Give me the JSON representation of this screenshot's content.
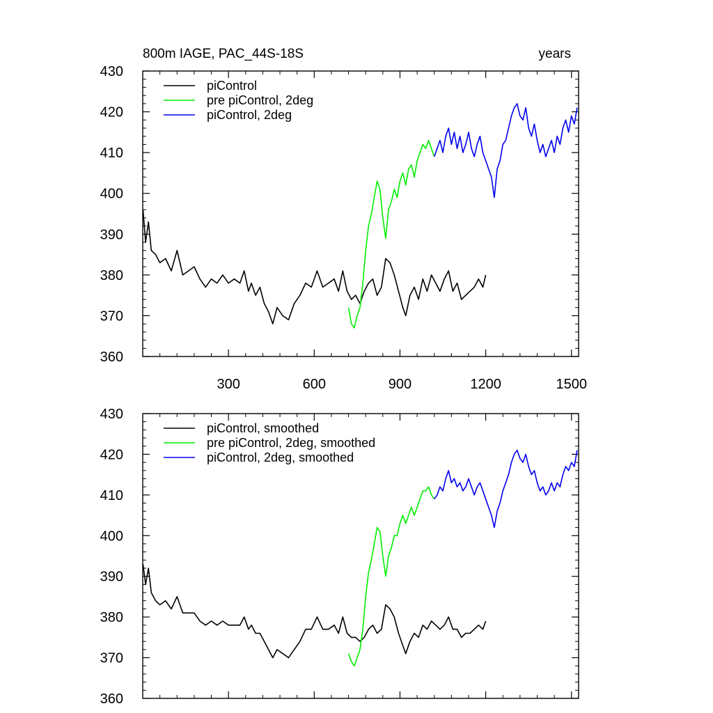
{
  "chart_data": [
    {
      "type": "line",
      "title": "800m IAGE, PAC_44S-18S",
      "title_right": "years",
      "xlabel": "",
      "ylabel": "",
      "xlim": [
        0,
        1525
      ],
      "ylim": [
        360,
        430
      ],
      "xticks": [
        300,
        600,
        900,
        1200,
        1500
      ],
      "yticks": [
        360,
        370,
        380,
        390,
        400,
        410,
        420,
        430
      ],
      "show_xtick_labels": true,
      "grid": false,
      "legend_placement": "top-left",
      "series": [
        {
          "name": "piControl",
          "color": "#000000",
          "x": [
            1,
            10,
            20,
            30,
            45,
            60,
            80,
            100,
            120,
            140,
            160,
            180,
            200,
            220,
            240,
            260,
            280,
            300,
            320,
            340,
            355,
            370,
            380,
            395,
            410,
            425,
            440,
            455,
            470,
            490,
            510,
            530,
            550,
            570,
            590,
            610,
            630,
            650,
            670,
            685,
            700,
            715,
            730,
            745,
            760,
            775,
            790,
            805,
            820,
            835,
            850,
            865,
            880,
            895,
            910,
            920,
            935,
            950,
            965,
            980,
            995,
            1010,
            1025,
            1040,
            1055,
            1070,
            1085,
            1100,
            1115,
            1130,
            1145,
            1160,
            1175,
            1190,
            1200
          ],
          "y": [
            396,
            388,
            393,
            386,
            385,
            383,
            384,
            381,
            386,
            380,
            381,
            382,
            379,
            377,
            379,
            378,
            380,
            378,
            379,
            378,
            381,
            376,
            378,
            375,
            377,
            373,
            371,
            368,
            372,
            370,
            369,
            373,
            375,
            378,
            377,
            381,
            377,
            378,
            379,
            376,
            381,
            376,
            374,
            375,
            373,
            376,
            378,
            379,
            375,
            377,
            384,
            383,
            380,
            376,
            372,
            370,
            375,
            377,
            374,
            379,
            376,
            380,
            378,
            376,
            379,
            381,
            376,
            378,
            374,
            375,
            376,
            377,
            379,
            377,
            380
          ]
        },
        {
          "name": "pre piControl, 2deg",
          "color": "#00ee00",
          "x": [
            720,
            730,
            740,
            750,
            760,
            770,
            780,
            790,
            800,
            810,
            820,
            830,
            840,
            850,
            860,
            870,
            880,
            890,
            900,
            910,
            920,
            930,
            940,
            950,
            960,
            970,
            980,
            990,
            1000,
            1010,
            1020
          ],
          "y": [
            372,
            368,
            367,
            370,
            372,
            378,
            386,
            392,
            395,
            399,
            403,
            401,
            394,
            389,
            396,
            398,
            401,
            399,
            403,
            405,
            402,
            406,
            407,
            404,
            408,
            410,
            412,
            411,
            413,
            411,
            409
          ]
        },
        {
          "name": "piControl, 2deg",
          "color": "#0000ee",
          "x": [
            1020,
            1030,
            1040,
            1050,
            1060,
            1070,
            1080,
            1090,
            1100,
            1110,
            1120,
            1130,
            1140,
            1150,
            1160,
            1170,
            1180,
            1190,
            1200,
            1210,
            1220,
            1230,
            1240,
            1250,
            1260,
            1270,
            1280,
            1290,
            1300,
            1310,
            1320,
            1330,
            1340,
            1350,
            1360,
            1370,
            1380,
            1390,
            1400,
            1410,
            1420,
            1430,
            1440,
            1450,
            1460,
            1470,
            1480,
            1490,
            1500,
            1510,
            1520
          ],
          "y": [
            409,
            411,
            413,
            410,
            414,
            416,
            412,
            415,
            411,
            414,
            410,
            412,
            415,
            411,
            409,
            412,
            414,
            410,
            408,
            406,
            404,
            399,
            406,
            408,
            412,
            413,
            416,
            419,
            421,
            422,
            419,
            418,
            421,
            416,
            414,
            417,
            413,
            410,
            412,
            409,
            411,
            413,
            410,
            414,
            412,
            416,
            418,
            415,
            419,
            417,
            421
          ]
        }
      ]
    },
    {
      "type": "line",
      "title": "",
      "xlabel": "",
      "ylabel": "",
      "xlim": [
        0,
        1525
      ],
      "ylim": [
        360,
        430
      ],
      "xticks": [
        300,
        600,
        900,
        1200,
        1500
      ],
      "yticks": [
        360,
        370,
        380,
        390,
        400,
        410,
        420,
        430
      ],
      "show_xtick_labels": false,
      "grid": false,
      "legend_placement": "top-left",
      "series": [
        {
          "name": "piControl, smoothed",
          "color": "#000000",
          "x": [
            1,
            10,
            20,
            30,
            45,
            60,
            80,
            100,
            120,
            140,
            160,
            180,
            200,
            220,
            240,
            260,
            280,
            300,
            320,
            340,
            355,
            370,
            380,
            395,
            410,
            425,
            440,
            455,
            470,
            490,
            510,
            530,
            550,
            570,
            590,
            610,
            630,
            650,
            670,
            685,
            700,
            715,
            730,
            745,
            760,
            775,
            790,
            805,
            820,
            835,
            850,
            865,
            880,
            895,
            910,
            920,
            935,
            950,
            965,
            980,
            995,
            1010,
            1025,
            1040,
            1055,
            1070,
            1085,
            1100,
            1115,
            1130,
            1145,
            1160,
            1175,
            1190,
            1200
          ],
          "y": [
            393,
            388,
            392,
            386,
            384,
            383,
            384,
            382,
            385,
            381,
            381,
            381,
            379,
            378,
            379,
            378,
            379,
            378,
            378,
            378,
            380,
            377,
            378,
            376,
            376,
            374,
            372,
            370,
            372,
            371,
            370,
            372,
            374,
            377,
            377,
            380,
            377,
            377,
            378,
            376,
            380,
            376,
            375,
            375,
            374,
            375,
            377,
            378,
            376,
            377,
            383,
            382,
            380,
            376,
            373,
            371,
            374,
            376,
            375,
            378,
            377,
            379,
            378,
            377,
            378,
            380,
            377,
            377,
            375,
            376,
            376,
            377,
            378,
            377,
            379
          ]
        },
        {
          "name": "pre piControl, 2deg, smoothed",
          "color": "#00ee00",
          "x": [
            720,
            730,
            740,
            750,
            760,
            770,
            780,
            790,
            800,
            810,
            820,
            830,
            840,
            850,
            860,
            870,
            880,
            890,
            900,
            910,
            920,
            930,
            940,
            950,
            960,
            970,
            980,
            990,
            1000,
            1010,
            1020
          ],
          "y": [
            371,
            369,
            368,
            370,
            372,
            377,
            385,
            391,
            394,
            398,
            402,
            401,
            395,
            390,
            395,
            397,
            400,
            400,
            403,
            405,
            403,
            405,
            407,
            405,
            407,
            409,
            411,
            411,
            412,
            410,
            409
          ]
        },
        {
          "name": "piControl, 2deg, smoothed",
          "color": "#0000ee",
          "x": [
            1020,
            1030,
            1040,
            1050,
            1060,
            1070,
            1080,
            1090,
            1100,
            1110,
            1120,
            1130,
            1140,
            1150,
            1160,
            1170,
            1180,
            1190,
            1200,
            1210,
            1220,
            1230,
            1240,
            1250,
            1260,
            1270,
            1280,
            1290,
            1300,
            1310,
            1320,
            1330,
            1340,
            1350,
            1360,
            1370,
            1380,
            1390,
            1400,
            1410,
            1420,
            1430,
            1440,
            1450,
            1460,
            1470,
            1480,
            1490,
            1500,
            1510,
            1520
          ],
          "y": [
            409,
            410,
            412,
            411,
            414,
            416,
            413,
            414,
            412,
            413,
            411,
            412,
            414,
            412,
            410,
            412,
            413,
            411,
            409,
            407,
            405,
            402,
            406,
            408,
            411,
            413,
            415,
            418,
            420,
            421,
            419,
            418,
            420,
            417,
            415,
            416,
            413,
            411,
            412,
            410,
            411,
            413,
            411,
            413,
            412,
            415,
            417,
            416,
            418,
            417,
            421
          ]
        }
      ]
    }
  ]
}
